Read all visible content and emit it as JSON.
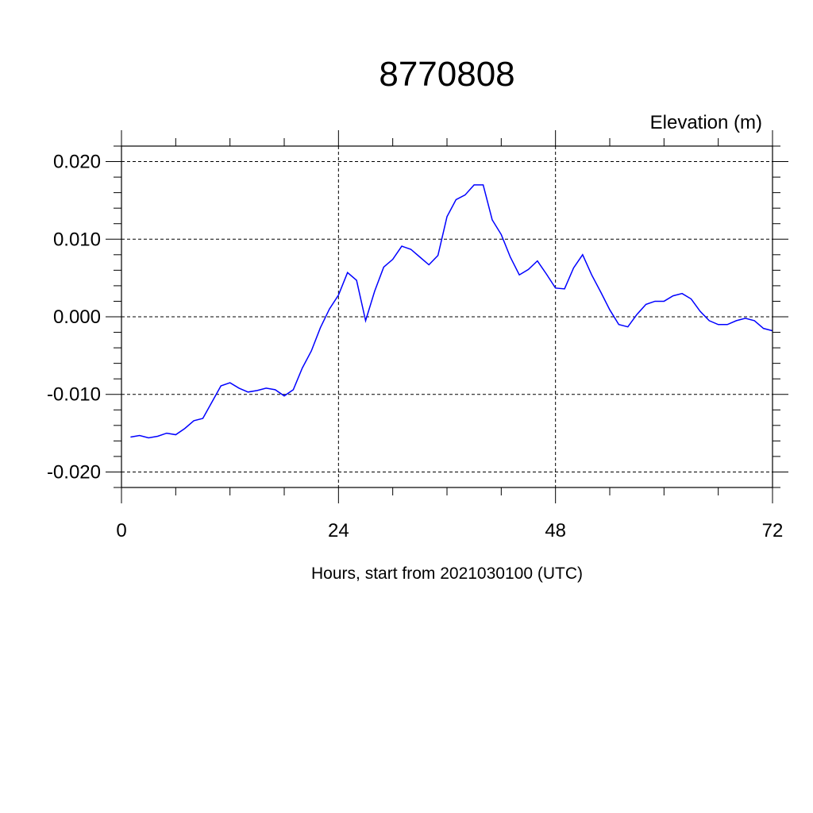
{
  "chart_data": {
    "type": "line",
    "title": "8770808",
    "units_label": "Elevation (m)",
    "xlabel": "Hours, start from 2021030100 (UTC)",
    "ylabel": "",
    "xlim": [
      0,
      72
    ],
    "ylim": [
      -0.02,
      0.02
    ],
    "x_ticks": [
      0,
      24,
      48,
      72
    ],
    "x_tick_labels": [
      "0",
      "24",
      "48",
      "72"
    ],
    "y_ticks": [
      -0.02,
      -0.01,
      0.0,
      0.01,
      0.02
    ],
    "y_tick_labels": [
      "-0.020",
      "-0.010",
      "0.000",
      "0.010",
      "0.020"
    ],
    "grid": "dashed at major ticks",
    "line_color": "#0000ff",
    "series": [
      {
        "x": [
          1,
          2,
          3,
          4,
          5,
          6,
          7,
          8,
          9,
          10,
          11,
          12,
          13,
          14,
          15,
          16,
          17,
          18,
          19,
          20,
          21,
          22,
          23,
          24,
          25,
          26,
          27,
          28,
          29,
          30,
          31,
          32,
          33,
          34,
          35,
          36,
          37,
          38,
          39,
          40,
          41,
          42,
          43,
          44,
          45,
          46,
          47,
          48,
          49,
          50,
          51,
          52,
          53,
          54,
          55,
          56,
          57,
          58,
          59,
          60,
          61,
          62,
          63,
          64,
          65,
          66,
          67,
          68,
          69,
          70,
          71,
          72
        ],
        "values": [
          -0.0155,
          -0.0153,
          -0.0156,
          -0.0154,
          -0.015,
          -0.0152,
          -0.0144,
          -0.0134,
          -0.0131,
          -0.011,
          -0.0089,
          -0.0085,
          -0.0092,
          -0.0097,
          -0.0095,
          -0.0092,
          -0.0094,
          -0.0102,
          -0.0094,
          -0.0066,
          -0.0044,
          -0.0014,
          0.001,
          0.0028,
          0.0057,
          0.0047,
          -0.0005,
          0.0033,
          0.0064,
          0.0074,
          0.0091,
          0.0087,
          0.0077,
          0.0067,
          0.0079,
          0.0129,
          0.0151,
          0.0157,
          0.017,
          0.017,
          0.0125,
          0.0106,
          0.0077,
          0.0054,
          0.0061,
          0.0072,
          0.0055,
          0.0037,
          0.0036,
          0.0063,
          0.008,
          0.0054,
          0.0032,
          0.0009,
          -0.001,
          -0.0013,
          0.0003,
          0.0016,
          0.002,
          0.002,
          0.0027,
          0.003,
          0.0023,
          0.0007,
          -0.0005,
          -0.001,
          -0.001,
          -0.0005,
          -0.0002,
          -0.0005,
          -0.0015,
          -0.0018
        ]
      }
    ]
  }
}
